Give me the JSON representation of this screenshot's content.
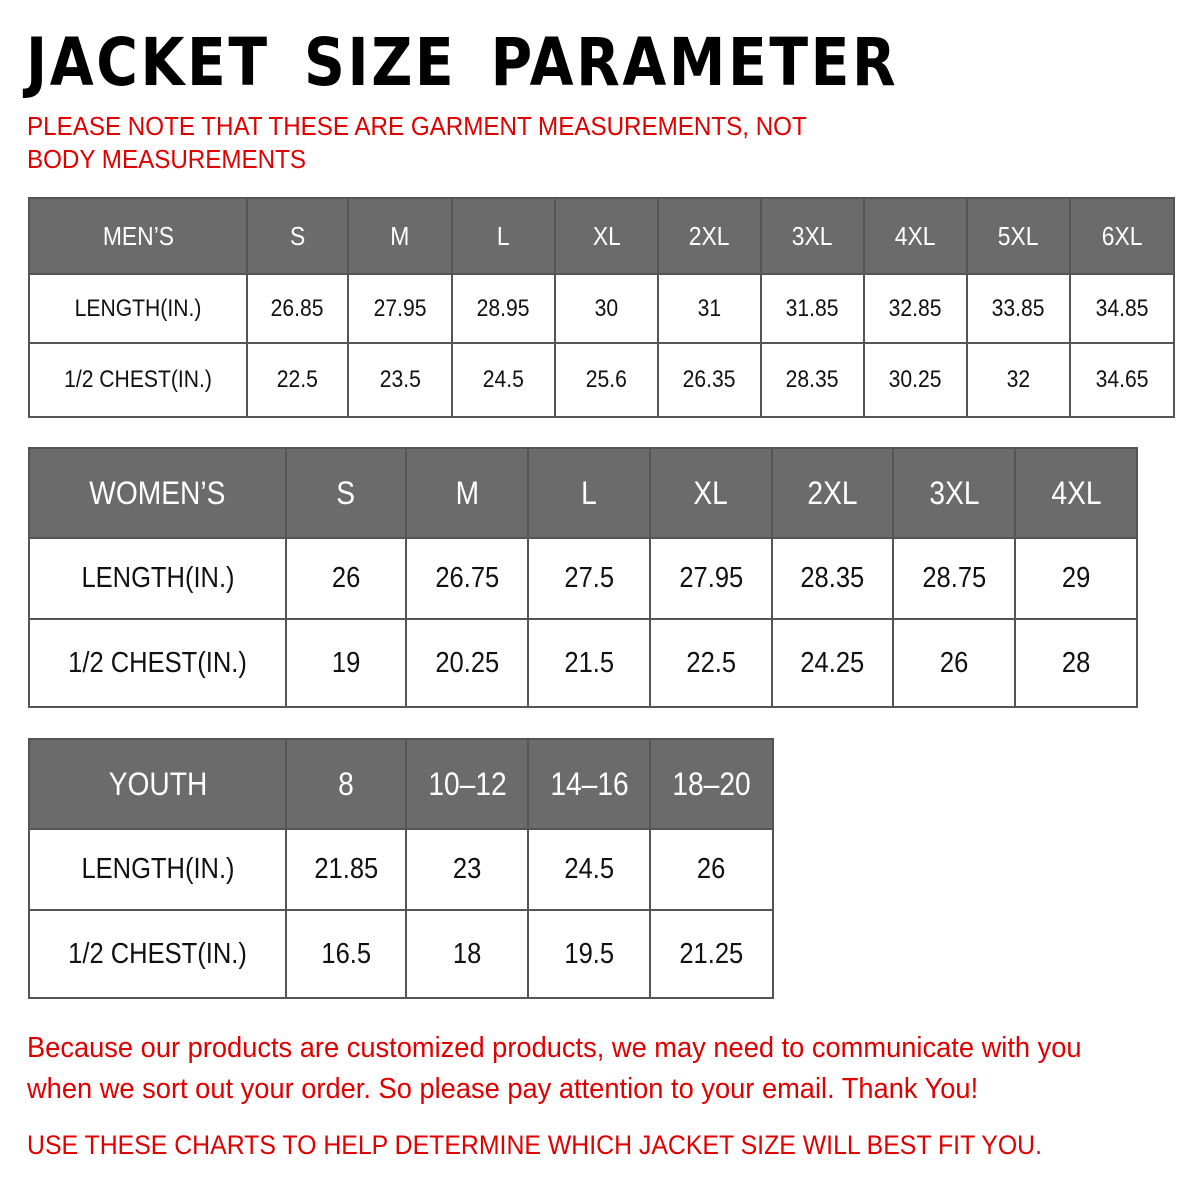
{
  "title": "JACKET SIZE PARAMETER",
  "note": "PLEASE NOTE THAT THESE ARE GARMENT MEASUREMENTS, NOT BODY MEASUREMENTS",
  "header_color": "#6b6b6b",
  "accent_color": "#e00000",
  "mens": {
    "label": "MEN’S",
    "sizes": [
      "S",
      "M",
      "L",
      "XL",
      "2XL",
      "3XL",
      "4XL",
      "5XL",
      "6XL"
    ],
    "rows": [
      {
        "label": "LENGTH(IN.)",
        "values": [
          "26.85",
          "27.95",
          "28.95",
          "30",
          "31",
          "31.85",
          "32.85",
          "33.85",
          "34.85"
        ]
      },
      {
        "label": "1/2 CHEST(IN.)",
        "values": [
          "22.5",
          "23.5",
          "24.5",
          "25.6",
          "26.35",
          "28.35",
          "30.25",
          "32",
          "34.65"
        ]
      }
    ]
  },
  "womens": {
    "label": "WOMEN’S",
    "sizes": [
      "S",
      "M",
      "L",
      "XL",
      "2XL",
      "3XL",
      "4XL"
    ],
    "rows": [
      {
        "label": "LENGTH(IN.)",
        "values": [
          "26",
          "26.75",
          "27.5",
          "27.95",
          "28.35",
          "28.75",
          "29"
        ]
      },
      {
        "label": "1/2 CHEST(IN.)",
        "values": [
          "19",
          "20.25",
          "21.5",
          "22.5",
          "24.25",
          "26",
          "28"
        ]
      }
    ]
  },
  "youth": {
    "label": "YOUTH",
    "sizes": [
      "8",
      "10–12",
      "14–16",
      "18–20"
    ],
    "rows": [
      {
        "label": "LENGTH(IN.)",
        "values": [
          "21.85",
          "23",
          "24.5",
          "26"
        ]
      },
      {
        "label": "1/2 CHEST(IN.)",
        "values": [
          "16.5",
          "18",
          "19.5",
          "21.25"
        ]
      }
    ]
  },
  "footer": {
    "message": "Because our products are customized products, we may need to communicate with you when we sort out your order. So please pay attention to your email. Thank You!",
    "instruction": "USE THESE CHARTS TO HELP DETERMINE WHICH JACKET SIZE WILL BEST FIT YOU."
  }
}
